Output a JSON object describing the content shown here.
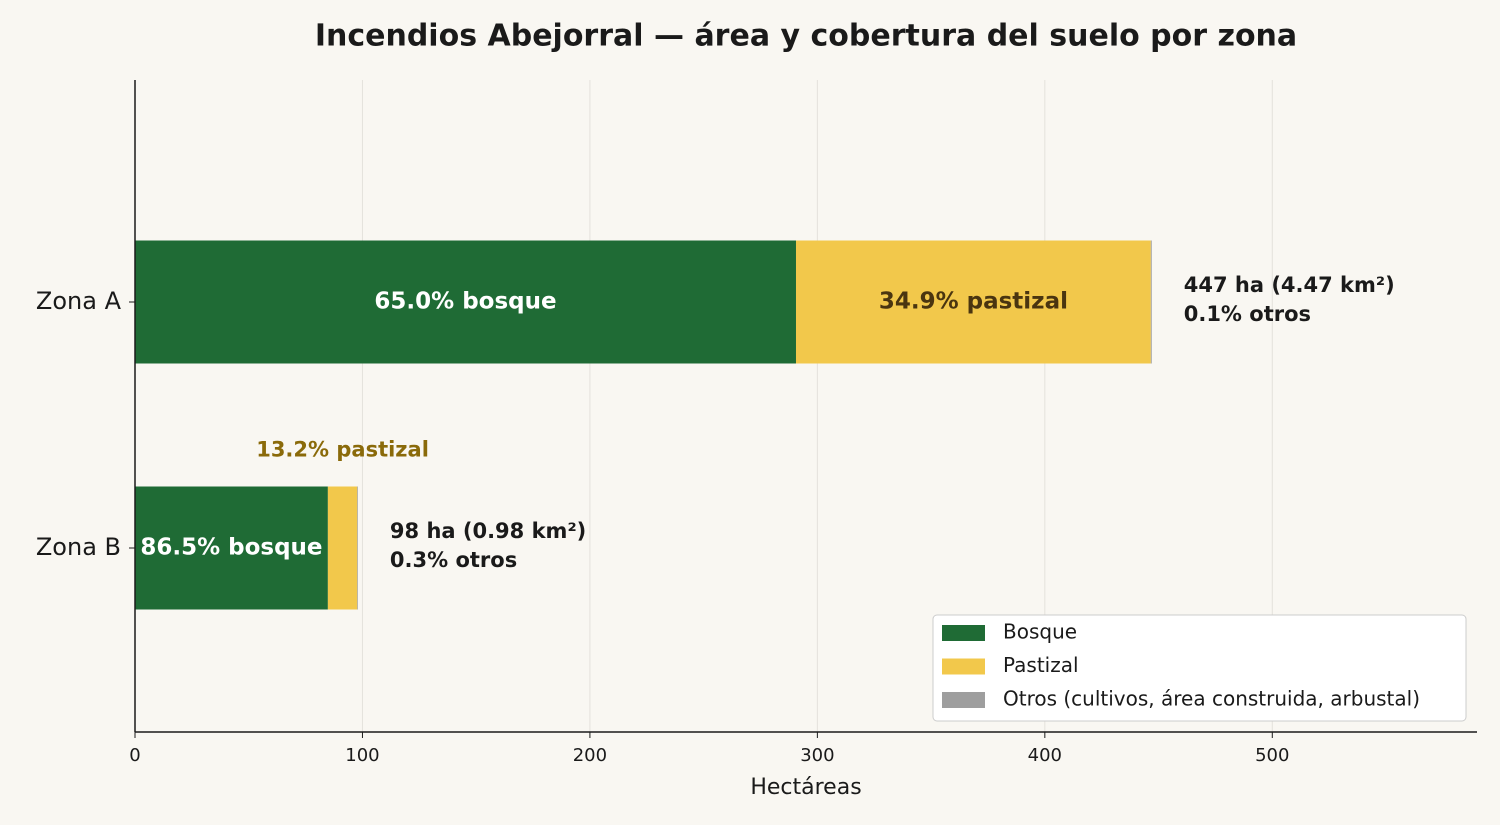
{
  "chart_data": {
    "type": "stacked_barh",
    "title": "Incendios Abejorral — área y cobertura del suelo por zona",
    "x_label": "Hectáreas",
    "categories": [
      "Zona A",
      "Zona B"
    ],
    "series": [
      {
        "name": "Bosque",
        "color": "#1f6b35",
        "values": [
          290.6,
          84.8
        ],
        "segment_labels": [
          "65.0% bosque",
          "86.5% bosque"
        ]
      },
      {
        "name": "Pastizal",
        "color": "#f2c84b",
        "values": [
          156.0,
          12.9
        ],
        "segment_labels": [
          "34.9% pastizal",
          "13.2% pastizal"
        ]
      },
      {
        "name": "Otros (cultivos, área construida, arbustal)",
        "color": "#9e9e9e",
        "values": [
          0.4,
          0.3
        ],
        "segment_labels": [
          "0.1% otros",
          "0.3% otros"
        ]
      }
    ],
    "total_labels": [
      "447 ha (4.47 km²)",
      "98 ha (0.98 km²)"
    ],
    "xlim": [
      0,
      590
    ],
    "xticks": [
      0,
      100,
      200,
      300,
      400,
      500
    ],
    "grid": true,
    "legend": "lower right"
  }
}
